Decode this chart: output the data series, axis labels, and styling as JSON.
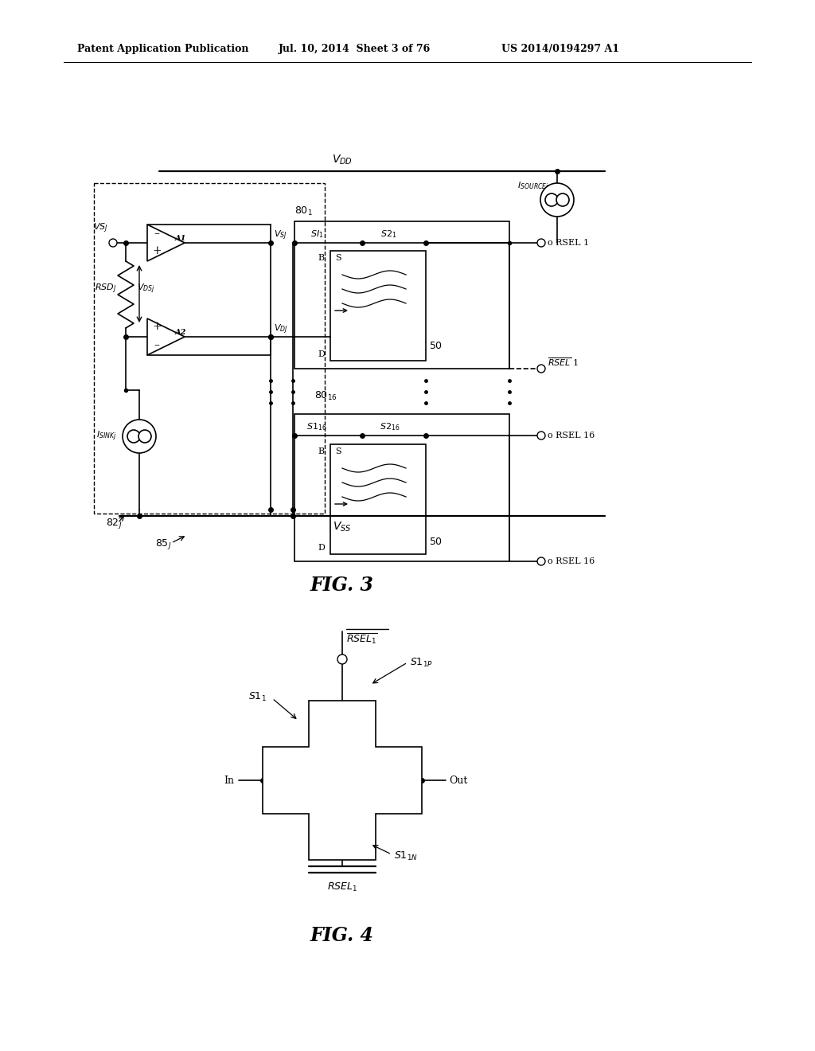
{
  "bg_color": "#ffffff",
  "header_text": "Patent Application Publication",
  "header_date": "Jul. 10, 2014  Sheet 3 of 76",
  "header_patent": "US 2014/0194297 A1",
  "fig3_label": "FIG. 3",
  "fig4_label": "FIG. 4"
}
